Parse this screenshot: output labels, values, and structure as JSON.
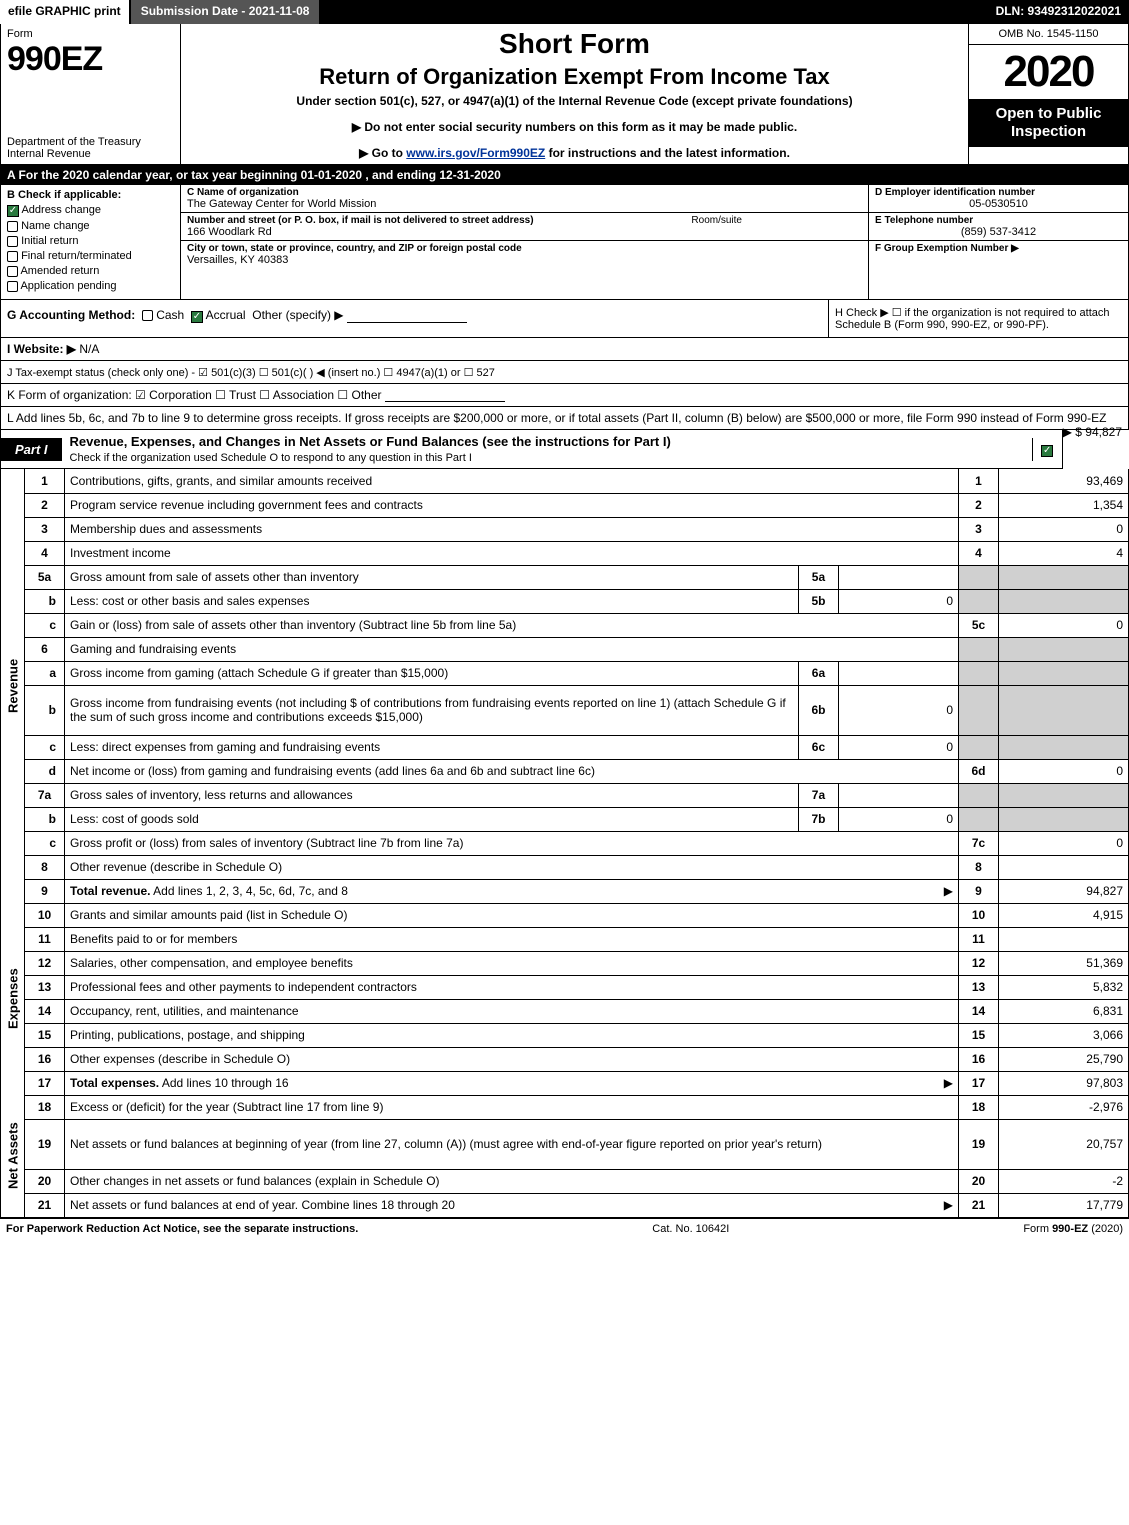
{
  "top_bar": {
    "efile": "efile GRAPHIC print",
    "submission_date": "Submission Date - 2021-11-08",
    "dln": "DLN: 93492312022021"
  },
  "header": {
    "form_label": "Form",
    "form_number": "990EZ",
    "dept": "Department of the Treasury\nInternal Revenue",
    "title1": "Short Form",
    "title2": "Return of Organization Exempt From Income Tax",
    "subtitle": "Under section 501(c), 527, or 4947(a)(1) of the Internal Revenue Code (except private foundations)",
    "note1": "▶ Do not enter social security numbers on this form as it may be made public.",
    "note2_prefix": "▶ Go to ",
    "note2_link": "www.irs.gov/Form990EZ",
    "note2_suffix": " for instructions and the latest information.",
    "omb": "OMB No. 1545-1150",
    "year": "2020",
    "open_to": "Open to Public Inspection"
  },
  "line_a": "A   For the 2020 calendar year, or tax year beginning 01-01-2020 , and ending 12-31-2020",
  "section_b": {
    "label": "B  Check if applicable:",
    "address_change": "Address change",
    "name_change": "Name change",
    "initial_return": "Initial return",
    "final_return": "Final return/terminated",
    "amended": "Amended return",
    "pending": "Application pending"
  },
  "section_c": {
    "name_label": "C Name of organization",
    "name_value": "The Gateway Center for World Mission",
    "street_label": "Number and street (or P. O. box, if mail is not delivered to street address)",
    "street_value": "166 Woodlark Rd",
    "room_label": "Room/suite",
    "city_label": "City or town, state or province, country, and ZIP or foreign postal code",
    "city_value": "Versailles, KY  40383"
  },
  "section_d": {
    "ein_label": "D Employer identification number",
    "ein_value": "05-0530510",
    "phone_label": "E Telephone number",
    "phone_value": "(859) 537-3412",
    "group_label": "F Group Exemption Number  ▶"
  },
  "section_g": {
    "label": "G Accounting Method:",
    "cash": "Cash",
    "accrual": "Accrual",
    "other": "Other (specify) ▶"
  },
  "section_h": {
    "label": "H  Check ▶  ☐  if the organization is not required to attach Schedule B (Form 990, 990-EZ, or 990-PF)."
  },
  "website": {
    "label": "I Website: ▶",
    "value": "N/A"
  },
  "line_j": "J Tax-exempt status (check only one) - ☑ 501(c)(3) ☐ 501(c)(  ) ◀ (insert no.) ☐ 4947(a)(1) or ☐ 527",
  "line_k": "K Form of organization:  ☑ Corporation  ☐ Trust  ☐ Association  ☐ Other",
  "line_l": {
    "text": "L Add lines 5b, 6c, and 7b to line 9 to determine gross receipts. If gross receipts are $200,000 or more, or if total assets (Part II, column (B) below) are $500,000 or more, file Form 990 instead of Form 990-EZ",
    "arrow": "▶ $",
    "value": "94,827"
  },
  "part1": {
    "label": "Part I",
    "title": "Revenue, Expenses, and Changes in Net Assets or Fund Balances (see the instructions for Part I)",
    "subtitle": "Check if the organization used Schedule O to respond to any question in this Part I"
  },
  "sidebars": {
    "revenue": "Revenue",
    "expenses": "Expenses",
    "netassets": "Net Assets"
  },
  "rows": [
    {
      "n": "1",
      "d": "Contributions, gifts, grants, and similar amounts received",
      "rn": "1",
      "rv": "93,469"
    },
    {
      "n": "2",
      "d": "Program service revenue including government fees and contracts",
      "rn": "2",
      "rv": "1,354"
    },
    {
      "n": "3",
      "d": "Membership dues and assessments",
      "rn": "3",
      "rv": "0"
    },
    {
      "n": "4",
      "d": "Investment income",
      "rn": "4",
      "rv": "4"
    },
    {
      "n": "5a",
      "d": "Gross amount from sale of assets other than inventory",
      "mn": "5a",
      "mv": "",
      "grey_r": true
    },
    {
      "n": "b",
      "d": "Less: cost or other basis and sales expenses",
      "mn": "5b",
      "mv": "0",
      "grey_r": true
    },
    {
      "n": "c",
      "d": "Gain or (loss) from sale of assets other than inventory (Subtract line 5b from line 5a)",
      "rn": "5c",
      "rv": "0"
    },
    {
      "n": "6",
      "d": "Gaming and fundraising events",
      "grey_r": true,
      "noborder": true
    },
    {
      "n": "a",
      "d": "Gross income from gaming (attach Schedule G if greater than $15,000)",
      "mn": "6a",
      "mv": "",
      "grey_r": true
    },
    {
      "n": "b",
      "d": "Gross income from fundraising events (not including $                     of contributions from fundraising events reported on line 1) (attach Schedule G if the sum of such gross income and contributions exceeds $15,000)",
      "mn": "6b",
      "mv": "0",
      "grey_r": true,
      "tall": true
    },
    {
      "n": "c",
      "d": "Less: direct expenses from gaming and fundraising events",
      "mn": "6c",
      "mv": "0",
      "grey_r": true
    },
    {
      "n": "d",
      "d": "Net income or (loss) from gaming and fundraising events (add lines 6a and 6b and subtract line 6c)",
      "rn": "6d",
      "rv": "0"
    },
    {
      "n": "7a",
      "d": "Gross sales of inventory, less returns and allowances",
      "mn": "7a",
      "mv": "",
      "grey_r": true
    },
    {
      "n": "b",
      "d": "Less: cost of goods sold",
      "mn": "7b",
      "mv": "0",
      "grey_r": true
    },
    {
      "n": "c",
      "d": "Gross profit or (loss) from sales of inventory (Subtract line 7b from line 7a)",
      "rn": "7c",
      "rv": "0"
    },
    {
      "n": "8",
      "d": "Other revenue (describe in Schedule O)",
      "rn": "8",
      "rv": ""
    },
    {
      "n": "9",
      "d": "Total revenue. Add lines 1, 2, 3, 4, 5c, 6d, 7c, and 8",
      "rn": "9",
      "rv": "94,827",
      "bold": true,
      "arrow": true
    }
  ],
  "expense_rows": [
    {
      "n": "10",
      "d": "Grants and similar amounts paid (list in Schedule O)",
      "rn": "10",
      "rv": "4,915"
    },
    {
      "n": "11",
      "d": "Benefits paid to or for members",
      "rn": "11",
      "rv": ""
    },
    {
      "n": "12",
      "d": "Salaries, other compensation, and employee benefits",
      "rn": "12",
      "rv": "51,369"
    },
    {
      "n": "13",
      "d": "Professional fees and other payments to independent contractors",
      "rn": "13",
      "rv": "5,832"
    },
    {
      "n": "14",
      "d": "Occupancy, rent, utilities, and maintenance",
      "rn": "14",
      "rv": "6,831"
    },
    {
      "n": "15",
      "d": "Printing, publications, postage, and shipping",
      "rn": "15",
      "rv": "3,066"
    },
    {
      "n": "16",
      "d": "Other expenses (describe in Schedule O)",
      "rn": "16",
      "rv": "25,790"
    },
    {
      "n": "17",
      "d": "Total expenses. Add lines 10 through 16",
      "rn": "17",
      "rv": "97,803",
      "bold": true,
      "arrow": true
    }
  ],
  "netasset_rows": [
    {
      "n": "18",
      "d": "Excess or (deficit) for the year (Subtract line 17 from line 9)",
      "rn": "18",
      "rv": "-2,976"
    },
    {
      "n": "19",
      "d": "Net assets or fund balances at beginning of year (from line 27, column (A)) (must agree with end-of-year figure reported on prior year's return)",
      "rn": "19",
      "rv": "20,757",
      "tall": true
    },
    {
      "n": "20",
      "d": "Other changes in net assets or fund balances (explain in Schedule O)",
      "rn": "20",
      "rv": "-2"
    },
    {
      "n": "21",
      "d": "Net assets or fund balances at end of year. Combine lines 18 through 20",
      "rn": "21",
      "rv": "17,779",
      "arrow": true
    }
  ],
  "footer": {
    "left": "For Paperwork Reduction Act Notice, see the separate instructions.",
    "mid": "Cat. No. 10642I",
    "right": "Form 990-EZ (2020)"
  },
  "colors": {
    "black": "#000000",
    "white": "#ffffff",
    "grey_cell": "#d0d0d0",
    "dark_grey": "#555555",
    "check_green": "#2a7a3f",
    "link_blue": "#003399"
  }
}
